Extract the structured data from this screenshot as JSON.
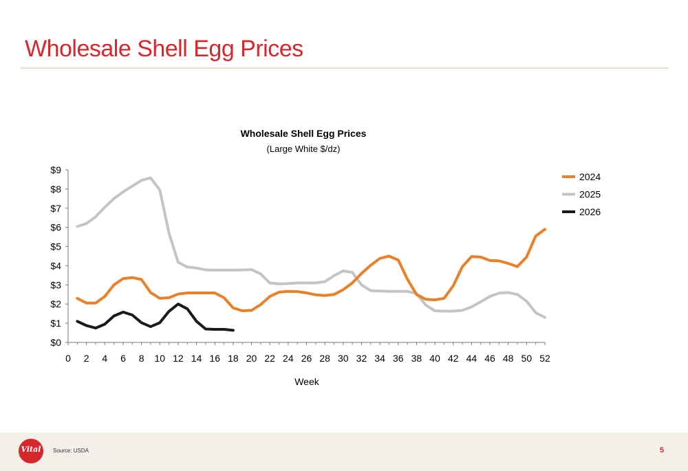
{
  "slide": {
    "title": "Wholesale Shell Egg Prices",
    "source": "Source: USDA",
    "page_number": "5",
    "logo_text": "Vital"
  },
  "colors": {
    "title_red": "#d5272c",
    "series_2024": "#e8812a",
    "series_2025": "#c4c4c4",
    "series_2026": "#1a1a1a"
  },
  "chart_data": {
    "type": "line",
    "title": "Wholesale Shell Egg Prices",
    "subtitle": "(Large White $/dz)",
    "xlabel": "Week",
    "ylabel": "",
    "xlim": [
      0,
      52
    ],
    "ylim": [
      0,
      9
    ],
    "x_ticks": [
      "0",
      "2",
      "4",
      "6",
      "8",
      "10",
      "12",
      "14",
      "16",
      "18",
      "20",
      "22",
      "24",
      "26",
      "28",
      "30",
      "32",
      "34",
      "36",
      "38",
      "40",
      "42",
      "44",
      "46",
      "48",
      "50",
      "52"
    ],
    "y_ticks": [
      "$0",
      "$1",
      "$2",
      "$3",
      "$4",
      "$5",
      "$6",
      "$7",
      "$8",
      "$9"
    ],
    "legend_position": "right",
    "grid": false,
    "series": [
      {
        "name": "2024",
        "x": [
          1,
          2,
          3,
          4,
          5,
          6,
          7,
          8,
          9,
          10,
          11,
          12,
          13,
          14,
          15,
          16,
          17,
          18,
          19,
          20,
          21,
          22,
          23,
          24,
          25,
          26,
          27,
          28,
          29,
          30,
          31,
          32,
          33,
          34,
          35,
          36,
          37,
          38,
          39,
          40,
          41,
          42,
          43,
          44,
          45,
          46,
          47,
          48,
          49,
          50,
          51,
          52
        ],
        "values": [
          2.3,
          2.05,
          2.05,
          2.4,
          3.0,
          3.33,
          3.38,
          3.28,
          2.6,
          2.3,
          2.33,
          2.52,
          2.58,
          2.58,
          2.58,
          2.58,
          2.33,
          1.8,
          1.65,
          1.67,
          1.97,
          2.4,
          2.62,
          2.66,
          2.65,
          2.58,
          2.48,
          2.45,
          2.5,
          2.75,
          3.1,
          3.6,
          4.02,
          4.38,
          4.5,
          4.3,
          3.3,
          2.5,
          2.25,
          2.22,
          2.3,
          2.95,
          3.95,
          4.48,
          4.45,
          4.27,
          4.25,
          4.12,
          3.95,
          4.45,
          5.55,
          5.9
        ]
      },
      {
        "name": "2025",
        "x": [
          1,
          2,
          3,
          4,
          5,
          6,
          7,
          8,
          9,
          10,
          11,
          12,
          13,
          14,
          15,
          16,
          17,
          18,
          19,
          20,
          21,
          22,
          23,
          24,
          25,
          26,
          27,
          28,
          29,
          30,
          31,
          32,
          33,
          34,
          35,
          36,
          37,
          38,
          39,
          40,
          41,
          42,
          43,
          44,
          45,
          46,
          47,
          48,
          49,
          50,
          51,
          52
        ],
        "values": [
          6.05,
          6.2,
          6.55,
          7.05,
          7.5,
          7.85,
          8.15,
          8.45,
          8.58,
          7.95,
          5.7,
          4.18,
          3.93,
          3.88,
          3.78,
          3.77,
          3.77,
          3.77,
          3.78,
          3.8,
          3.57,
          3.1,
          3.05,
          3.07,
          3.1,
          3.1,
          3.1,
          3.17,
          3.48,
          3.73,
          3.65,
          3.0,
          2.7,
          2.68,
          2.66,
          2.66,
          2.66,
          2.55,
          1.95,
          1.65,
          1.63,
          1.63,
          1.67,
          1.85,
          2.12,
          2.4,
          2.57,
          2.6,
          2.5,
          2.15,
          1.55,
          1.3
        ]
      },
      {
        "name": "2026",
        "x": [
          1,
          2,
          3,
          4,
          5,
          6,
          7,
          8,
          9,
          10,
          11,
          12,
          13,
          14,
          15,
          16,
          17,
          18
        ],
        "values": [
          1.1,
          0.88,
          0.75,
          0.95,
          1.38,
          1.58,
          1.43,
          1.03,
          0.82,
          1.03,
          1.62,
          2.0,
          1.75,
          1.1,
          0.7,
          0.68,
          0.68,
          0.63
        ]
      }
    ]
  }
}
